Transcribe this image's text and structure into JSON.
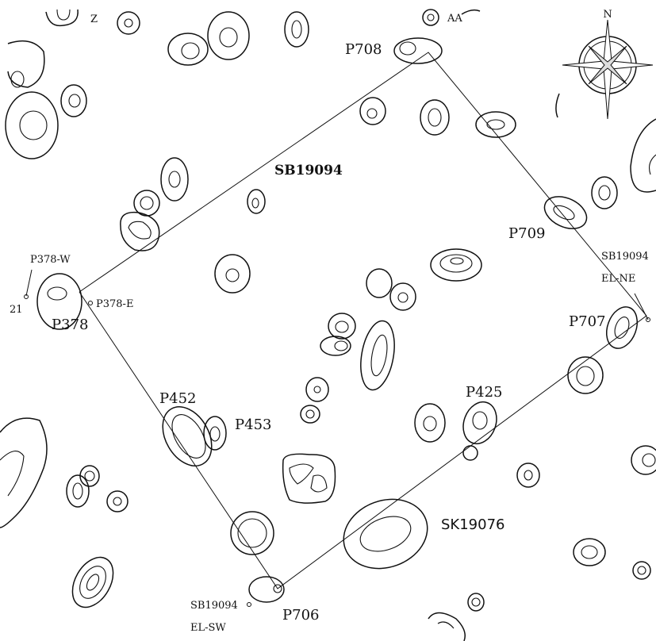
{
  "map": {
    "compass": "N",
    "labels": {
      "z": "Z",
      "aa": "AA",
      "p708": "P708",
      "sb19094": "SB19094",
      "p709": "P709",
      "p378w": "P378-W",
      "n21": "21",
      "p378e": "P378-E",
      "p378": "P378",
      "elne": [
        "SB19094",
        "EL-NE"
      ],
      "p707": "P707",
      "p452": "P452",
      "p453": "P453",
      "p425": "P425",
      "sk19076": "SK19076",
      "elsw": [
        "SB19094",
        "EL-SW"
      ],
      "p706": "P706"
    }
  }
}
